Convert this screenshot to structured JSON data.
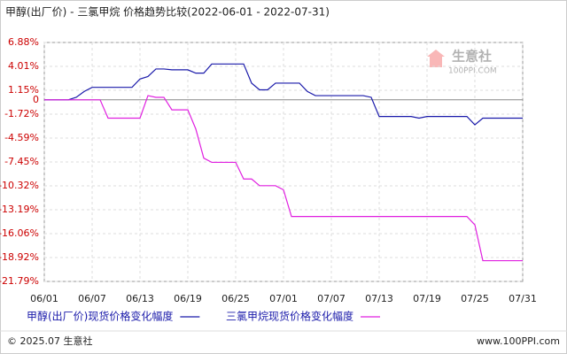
{
  "chart_data": {
    "type": "line",
    "title": "甲醇(出厂价) - 三氯甲烷 价格趋势比较(2022-06-01 - 2022-07-31)",
    "categories": [
      "06/01",
      null,
      null,
      null,
      null,
      null,
      "06/07",
      null,
      null,
      null,
      null,
      null,
      "06/13",
      null,
      null,
      null,
      null,
      null,
      "06/19",
      null,
      null,
      null,
      null,
      null,
      "06/25",
      null,
      null,
      null,
      null,
      null,
      "07/01",
      null,
      null,
      null,
      null,
      null,
      "07/07",
      null,
      null,
      null,
      null,
      null,
      "07/13",
      null,
      null,
      null,
      null,
      null,
      "07/19",
      null,
      null,
      null,
      null,
      null,
      "07/25",
      null,
      null,
      null,
      null,
      null,
      "07/31"
    ],
    "series": [
      {
        "name": "甲醇(出厂价)现货价格变化幅度",
        "color": "#1a1aaa",
        "values": [
          0,
          0,
          0,
          0,
          0.3,
          1.0,
          1.5,
          1.5,
          1.5,
          1.5,
          1.5,
          1.5,
          2.5,
          2.8,
          3.7,
          3.7,
          3.6,
          3.6,
          3.6,
          3.2,
          3.2,
          4.3,
          4.3,
          4.3,
          4.3,
          4.3,
          2.0,
          1.2,
          1.2,
          2.0,
          2.0,
          2.0,
          2.0,
          1.0,
          0.5,
          0.5,
          0.5,
          0.5,
          0.5,
          0.5,
          0.5,
          0.3,
          -2.0,
          -2.0,
          -2.0,
          -2.0,
          -2.0,
          -2.2,
          -2.0,
          -2.0,
          -2.0,
          -2.0,
          -2.0,
          -2.0,
          -3.0,
          -2.2,
          -2.2,
          -2.2,
          -2.2,
          -2.2,
          -2.2
        ]
      },
      {
        "name": "三氯甲烷现货价格变化幅度",
        "color": "#e020e0",
        "values": [
          0,
          0,
          0,
          0,
          0,
          0,
          0,
          0,
          -2.2,
          -2.2,
          -2.2,
          -2.2,
          -2.2,
          0.5,
          0.3,
          0.3,
          -1.2,
          -1.2,
          -1.2,
          -3.5,
          -7.0,
          -7.5,
          -7.5,
          -7.5,
          -7.5,
          -9.5,
          -9.5,
          -10.3,
          -10.3,
          -10.3,
          -10.8,
          -14.0,
          -14.0,
          -14.0,
          -14.0,
          -14.0,
          -14.0,
          -14.0,
          -14.0,
          -14.0,
          -14.0,
          -14.0,
          -14.0,
          -14.0,
          -14.0,
          -14.0,
          -14.0,
          -14.0,
          -14.0,
          -14.0,
          -14.0,
          -14.0,
          -14.0,
          -14.0,
          -15.0,
          -19.3,
          -19.3,
          -19.3,
          -19.3,
          -19.3,
          -19.3
        ]
      }
    ],
    "ylim": [
      -21.79,
      6.88
    ],
    "yticks": [
      {
        "value": 6.88,
        "label": "6.88%"
      },
      {
        "value": 4.01,
        "label": "4.01%"
      },
      {
        "value": 1.15,
        "label": "1.15%"
      },
      0,
      {
        "value": -1.72,
        "label": "-1.72%"
      },
      {
        "value": -4.59,
        "label": "-4.59%"
      },
      {
        "value": -7.45,
        "label": "-7.45%"
      },
      {
        "value": -10.32,
        "label": "-10.32%"
      },
      {
        "value": -13.19,
        "label": "-13.19%"
      },
      {
        "value": -16.06,
        "label": "-16.06%"
      },
      {
        "value": -18.92,
        "label": "-18.92%"
      },
      {
        "value": -21.79,
        "label": "-21.79%"
      }
    ],
    "grid": true,
    "watermark": {
      "name": "生意社",
      "site": "100PPI.COM"
    },
    "footer": {
      "copyright": "© 2025.07 生意社",
      "site": "www.100PPI.com"
    }
  }
}
